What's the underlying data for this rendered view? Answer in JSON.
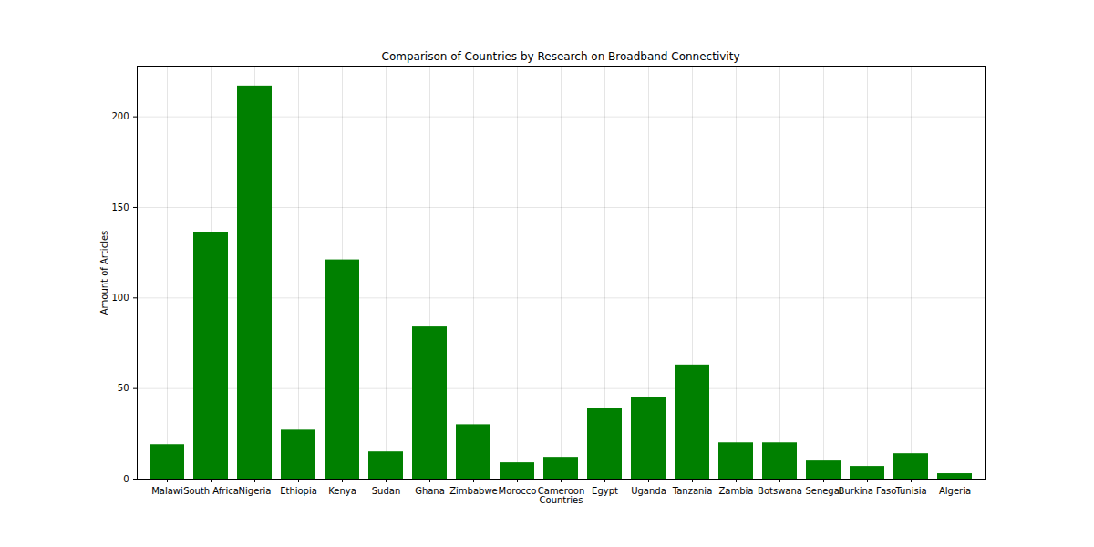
{
  "chart_data": {
    "type": "bar",
    "title": "Comparison of Countries by Research on Broadband Connectivity",
    "x_label": "Countries",
    "y_label": "Amount of Articles",
    "categories": [
      "Malawi",
      "South Africa",
      "Nigeria",
      "Ethiopia",
      "Kenya",
      "Sudan",
      "Ghana",
      "Zimbabwe",
      "Morocco",
      "Cameroon",
      "Egypt",
      "Uganda",
      "Tanzania",
      "Zambia",
      "Botswana",
      "Senegal",
      "Burkina Faso",
      "Tunisia",
      "Algeria"
    ],
    "values": [
      19,
      136,
      217,
      27,
      121,
      15,
      84,
      30,
      9,
      12,
      39,
      45,
      63,
      20,
      20,
      10,
      7,
      14,
      3
    ],
    "color": "#008000",
    "ylim": [
      0,
      228
    ],
    "yticks": [
      0,
      50,
      100,
      150,
      200
    ],
    "grid": true
  }
}
